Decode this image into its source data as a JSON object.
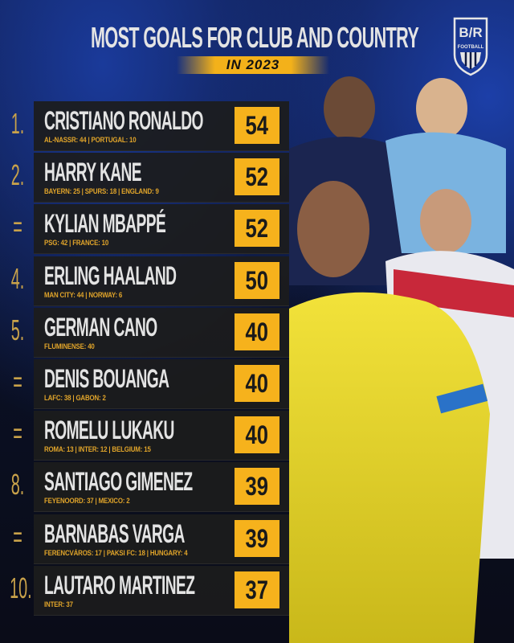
{
  "header": {
    "title": "MOST GOALS FOR CLUB AND COUNTRY",
    "subtitle": "IN 2023"
  },
  "logo": {
    "text": "B/R FOOTBALL"
  },
  "colors": {
    "accent": "#f6b21c",
    "panel": "#1c1c1c",
    "detail": "#e0a42a",
    "background": "#0f1a44"
  },
  "rankings": [
    {
      "rank": "1.",
      "name": "CRISTIANO RONALDO",
      "detail": "AL-NASSR: 44 | PORTUGAL: 10",
      "goals": "54"
    },
    {
      "rank": "2.",
      "name": "HARRY KANE",
      "detail": "BAYERN: 25 | SPURS: 18 | ENGLAND: 9",
      "goals": "52"
    },
    {
      "rank": "=",
      "name": "KYLIAN MBAPPÉ",
      "detail": "PSG: 42 | FRANCE: 10",
      "goals": "52"
    },
    {
      "rank": "4.",
      "name": "ERLING HAALAND",
      "detail": "MAN CITY: 44 | NORWAY: 6",
      "goals": "50"
    },
    {
      "rank": "5.",
      "name": "GERMAN CANO",
      "detail": "FLUMINENSE: 40",
      "goals": "40"
    },
    {
      "rank": "=",
      "name": "DENIS BOUANGA",
      "detail": "LAFC: 38 | GABON: 2",
      "goals": "40"
    },
    {
      "rank": "=",
      "name": "ROMELU LUKAKU",
      "detail": "ROMA: 13 | INTER: 12 | BELGIUM: 15",
      "goals": "40"
    },
    {
      "rank": "8.",
      "name": "SANTIAGO GIMENEZ",
      "detail": "FEYENOORD: 37 | MEXICO: 2",
      "goals": "39"
    },
    {
      "rank": "=",
      "name": "BARNABAS VARGA",
      "detail": "FERENCVÁROS: 17 | PAKSI FC: 18 | HUNGARY: 4",
      "goals": "39"
    },
    {
      "rank": "10.",
      "name": "LAUTARO MARTINEZ",
      "detail": "INTER: 37",
      "goals": "37"
    }
  ]
}
